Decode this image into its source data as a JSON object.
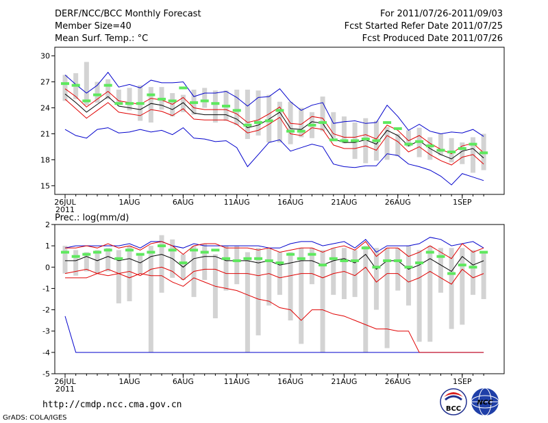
{
  "header": {
    "title": "DERF/NCC/BCC Monthly Forecast",
    "period": "For 2011/07/26-2011/09/03",
    "member_size": "Member Size=40",
    "started": "Fcst Started Refer Date 2011/07/25",
    "variable": "Mean Surf. Temp.: °C",
    "produced": "Fcst Produced Date 2011/07/26"
  },
  "footer": {
    "url": "http://cmdp.ncc.cma.gov.cn",
    "grads": "GrADS: COLA/IGES",
    "logo_bcc": "BCC",
    "logo_ncc": "NCC"
  },
  "colors": {
    "box": "#d3d3d3",
    "median": "#5ee85e",
    "mean": "#000000",
    "inner": "#e00000",
    "outer": "#0000cc"
  },
  "chart_data": [
    {
      "type": "box-line",
      "title": "Mean Surf. Temp.: °C",
      "x_labels": [
        "26JUL",
        "1AUG",
        "6AUG",
        "11AUG",
        "16AUG",
        "21AUG",
        "26AUG",
        "1SEP"
      ],
      "x_label_days": [
        0,
        6,
        11,
        16,
        21,
        26,
        31,
        37
      ],
      "x_year": "2011",
      "ylim": [
        14,
        31
      ],
      "yticks": [
        15,
        18,
        21,
        24,
        27,
        30
      ],
      "series": {
        "box_low": [
          24.8,
          25.0,
          24.3,
          24.6,
          25.0,
          24.6,
          23.7,
          22.5,
          22.3,
          23.8,
          23.0,
          23.5,
          23.2,
          24.0,
          22.3,
          22.5,
          22.0,
          20.4,
          20.8,
          20.0,
          20.0,
          19.8,
          20.6,
          20.5,
          21.3,
          20.5,
          19.9,
          18.1,
          17.6,
          17.9,
          18.0,
          18.4,
          19.5,
          18.3,
          18.0,
          18.5,
          17.7,
          17.5,
          16.5,
          16.8
        ],
        "box_high": [
          27.8,
          28.0,
          29.3,
          27.0,
          27.3,
          26.1,
          26.3,
          26.6,
          26.4,
          26.4,
          25.7,
          25.5,
          26.1,
          26.3,
          26.0,
          26.0,
          26.1,
          26.1,
          26.0,
          25.5,
          24.7,
          24.7,
          24.0,
          23.5,
          25.3,
          23.5,
          23.0,
          22.3,
          22.8,
          22.5,
          21.8,
          21.0,
          21.4,
          21.7,
          20.6,
          21.0,
          20.5,
          20.0,
          20.6,
          21.0
        ],
        "median": [
          26.8,
          26.6,
          24.8,
          25.5,
          26.6,
          24.5,
          24.5,
          24.5,
          25.5,
          25.0,
          24.8,
          26.3,
          24.6,
          24.8,
          24.5,
          24.2,
          23.7,
          22.0,
          22.3,
          22.5,
          23.7,
          21.3,
          21.3,
          22.0,
          22.3,
          20.3,
          20.2,
          20.2,
          20.4,
          20.2,
          22.3,
          21.6,
          19.8,
          20.1,
          19.6,
          19.1,
          18.9,
          19.3,
          19.8,
          18.8
        ],
        "mean": [
          25.6,
          24.6,
          23.5,
          24.4,
          25.3,
          24.2,
          24.0,
          23.8,
          24.5,
          24.3,
          23.8,
          24.6,
          23.4,
          23.2,
          23.2,
          23.2,
          22.7,
          21.7,
          22.0,
          22.7,
          23.5,
          21.6,
          21.5,
          22.4,
          22.2,
          20.4,
          20.0,
          20.0,
          20.3,
          19.8,
          21.4,
          20.8,
          19.6,
          20.2,
          19.3,
          18.6,
          18.1,
          19.0,
          19.3,
          18.2
        ],
        "upper": [
          26.2,
          25.3,
          24.1,
          25.0,
          25.9,
          24.8,
          24.6,
          24.4,
          25.1,
          24.9,
          24.4,
          25.2,
          24.0,
          23.8,
          23.8,
          23.8,
          23.3,
          22.3,
          22.6,
          23.3,
          24.1,
          22.2,
          22.1,
          23.0,
          22.8,
          21.0,
          20.6,
          20.6,
          20.9,
          20.4,
          22.0,
          21.4,
          20.2,
          20.8,
          19.9,
          19.2,
          18.7,
          19.6,
          19.9,
          18.8
        ],
        "lower": [
          25.0,
          23.9,
          22.8,
          23.7,
          24.6,
          23.5,
          23.3,
          23.1,
          23.8,
          23.6,
          23.1,
          23.9,
          22.7,
          22.6,
          22.6,
          22.6,
          22.1,
          21.1,
          21.4,
          22.1,
          22.9,
          21.0,
          20.8,
          21.7,
          21.5,
          19.7,
          19.3,
          19.3,
          19.6,
          19.1,
          20.8,
          20.1,
          18.9,
          19.5,
          18.6,
          17.9,
          17.4,
          18.3,
          18.6,
          17.5
        ],
        "max": [
          27.8,
          26.7,
          25.7,
          26.6,
          28.1,
          26.4,
          26.7,
          26.3,
          27.2,
          26.9,
          26.9,
          27.0,
          25.3,
          25.7,
          25.7,
          25.9,
          25.2,
          24.2,
          25.2,
          25.3,
          26.2,
          24.7,
          23.7,
          24.3,
          24.6,
          22.2,
          22.4,
          22.5,
          22.2,
          22.3,
          24.3,
          23.0,
          21.4,
          22.1,
          21.3,
          21.0,
          21.2,
          21.1,
          21.5,
          20.7
        ],
        "min": [
          21.5,
          20.8,
          20.5,
          21.5,
          21.7,
          21.1,
          21.2,
          21.5,
          21.2,
          21.4,
          20.9,
          21.7,
          20.5,
          20.4,
          20.1,
          20.2,
          19.4,
          17.2,
          18.6,
          20.0,
          20.3,
          19.0,
          19.4,
          19.8,
          19.5,
          17.5,
          17.2,
          17.1,
          17.3,
          17.3,
          18.7,
          18.5,
          17.5,
          17.2,
          16.8,
          16.1,
          15.1,
          16.4,
          16.0,
          15.6
        ]
      }
    },
    {
      "type": "box-line",
      "title": "Prec.: log(mm/d)",
      "x_labels": [
        "26JUL",
        "1AUG",
        "6AUG",
        "11AUG",
        "16AUG",
        "21AUG",
        "26AUG",
        "1SEP"
      ],
      "x_label_days": [
        0,
        6,
        11,
        16,
        21,
        26,
        31,
        37
      ],
      "x_year": "2011",
      "ylim": [
        -5,
        2
      ],
      "yticks": [
        -5,
        -4,
        -3,
        -2,
        -1,
        0,
        1,
        2
      ],
      "series": {
        "box_low": [
          -0.3,
          -0.4,
          -0.2,
          -0.3,
          -0.2,
          -1.7,
          -1.6,
          -0.3,
          -4.0,
          -1.2,
          -0.5,
          -0.6,
          -1.4,
          -0.6,
          -2.4,
          -1.1,
          -0.8,
          -4.0,
          -3.2,
          -1.8,
          -1.3,
          -2.5,
          -3.6,
          -0.8,
          -4.0,
          -1.3,
          -1.5,
          -1.4,
          -4.0,
          -2.0,
          -3.8,
          -1.1,
          -1.8,
          -3.5,
          -3.5,
          -1.2,
          -2.9,
          -2.7,
          -1.3,
          -1.5
        ],
        "box_high": [
          1.0,
          0.8,
          0.7,
          0.8,
          0.9,
          0.8,
          1.0,
          0.6,
          1.0,
          1.5,
          1.3,
          0.6,
          1.0,
          1.1,
          0.6,
          1.0,
          1.0,
          0.7,
          0.9,
          0.9,
          0.7,
          0.7,
          0.9,
          0.9,
          0.8,
          0.9,
          0.9,
          0.8,
          1.0,
          0.9,
          0.9,
          0.9,
          1.0,
          0.8,
          1.0,
          0.9,
          0.9,
          0.9,
          0.8,
          0.7
        ],
        "median": [
          0.7,
          0.5,
          0.6,
          0.7,
          0.8,
          0.4,
          0.8,
          0.6,
          0.7,
          1.0,
          0.8,
          0.2,
          0.8,
          0.7,
          0.8,
          0.4,
          0.3,
          0.4,
          0.4,
          0.3,
          0.2,
          0.6,
          0.4,
          0.6,
          0.1,
          0.4,
          0.3,
          0.3,
          0.9,
          0.0,
          0.3,
          0.3,
          0.0,
          0.2,
          0.7,
          0.5,
          -0.3,
          0.1,
          0.0,
          0.7
        ],
        "mean": [
          0.3,
          0.3,
          0.5,
          0.3,
          0.5,
          0.3,
          0.4,
          0.2,
          0.5,
          0.6,
          0.4,
          0.0,
          0.4,
          0.5,
          0.5,
          0.3,
          0.3,
          0.3,
          0.2,
          0.3,
          0.1,
          0.2,
          0.3,
          0.3,
          0.1,
          0.3,
          0.4,
          0.2,
          0.6,
          -0.1,
          0.3,
          0.3,
          -0.1,
          0.1,
          0.4,
          0.1,
          -0.2,
          0.5,
          0.1,
          0.3
        ],
        "upper": [
          0.9,
          0.9,
          1.0,
          0.9,
          1.1,
          0.9,
          1.0,
          0.8,
          1.1,
          1.2,
          1.0,
          0.6,
          1.0,
          1.1,
          1.1,
          0.9,
          0.9,
          0.9,
          0.8,
          0.9,
          0.7,
          0.8,
          0.9,
          0.9,
          0.7,
          0.9,
          1.0,
          0.8,
          1.2,
          0.5,
          0.9,
          0.9,
          0.5,
          0.7,
          1.0,
          0.7,
          0.4,
          1.1,
          0.7,
          0.9
        ],
        "lower": [
          -0.3,
          -0.2,
          -0.1,
          -0.3,
          -0.1,
          -0.3,
          -0.2,
          -0.4,
          -0.1,
          0.0,
          -0.2,
          -0.6,
          -0.2,
          -0.1,
          -0.1,
          -0.3,
          -0.3,
          -0.3,
          -0.4,
          -0.3,
          -0.5,
          -0.4,
          -0.3,
          -0.3,
          -0.5,
          -0.3,
          -0.2,
          -0.4,
          0.0,
          -0.7,
          -0.3,
          -0.3,
          -0.7,
          -0.5,
          -0.2,
          -0.5,
          -0.8,
          -0.1,
          -0.5,
          -0.3
        ],
        "max": [
          0.9,
          1.0,
          1.0,
          1.0,
          1.0,
          1.0,
          1.1,
          0.9,
          1.2,
          1.2,
          1.0,
          0.9,
          1.1,
          1.0,
          1.0,
          1.0,
          1.0,
          1.0,
          1.0,
          0.9,
          0.9,
          1.1,
          1.2,
          1.2,
          1.0,
          1.1,
          1.2,
          0.9,
          1.3,
          0.7,
          1.0,
          1.0,
          1.0,
          1.1,
          1.4,
          1.3,
          1.0,
          1.1,
          1.2,
          0.9
        ],
        "lower2": [
          -0.5,
          -0.5,
          -0.5,
          -0.3,
          -0.4,
          -0.3,
          -0.5,
          -0.3,
          -0.4,
          -0.4,
          -0.7,
          -0.9,
          -0.5,
          -0.7,
          -0.9,
          -1.0,
          -1.1,
          -1.3,
          -1.5,
          -1.6,
          -1.9,
          -2.0,
          -2.5,
          -2.0,
          -2.0,
          -2.2,
          -2.3,
          -2.5,
          -2.7,
          -2.9,
          -2.9,
          -3.0,
          -3.0,
          -4.0,
          -4.0,
          -4.0,
          -4.0,
          -4.0,
          -4.0,
          -4.0
        ],
        "min": [
          -2.3,
          -4.0,
          -4.0,
          -4.0,
          -4.0,
          -4.0,
          -4.0,
          -4.0,
          -4.0,
          -4.0,
          -4.0,
          -4.0,
          -4.0,
          -4.0,
          -4.0,
          -4.0,
          -4.0,
          -4.0,
          -4.0,
          -4.0,
          -4.0,
          -4.0,
          -4.0,
          -4.0,
          -4.0,
          -4.0,
          -4.0,
          -4.0,
          -4.0,
          -4.0,
          -4.0,
          -4.0,
          -4.0,
          -4.0,
          -4.0,
          -4.0,
          -4.0,
          -4.0,
          -4.0,
          -4.0
        ]
      }
    }
  ]
}
